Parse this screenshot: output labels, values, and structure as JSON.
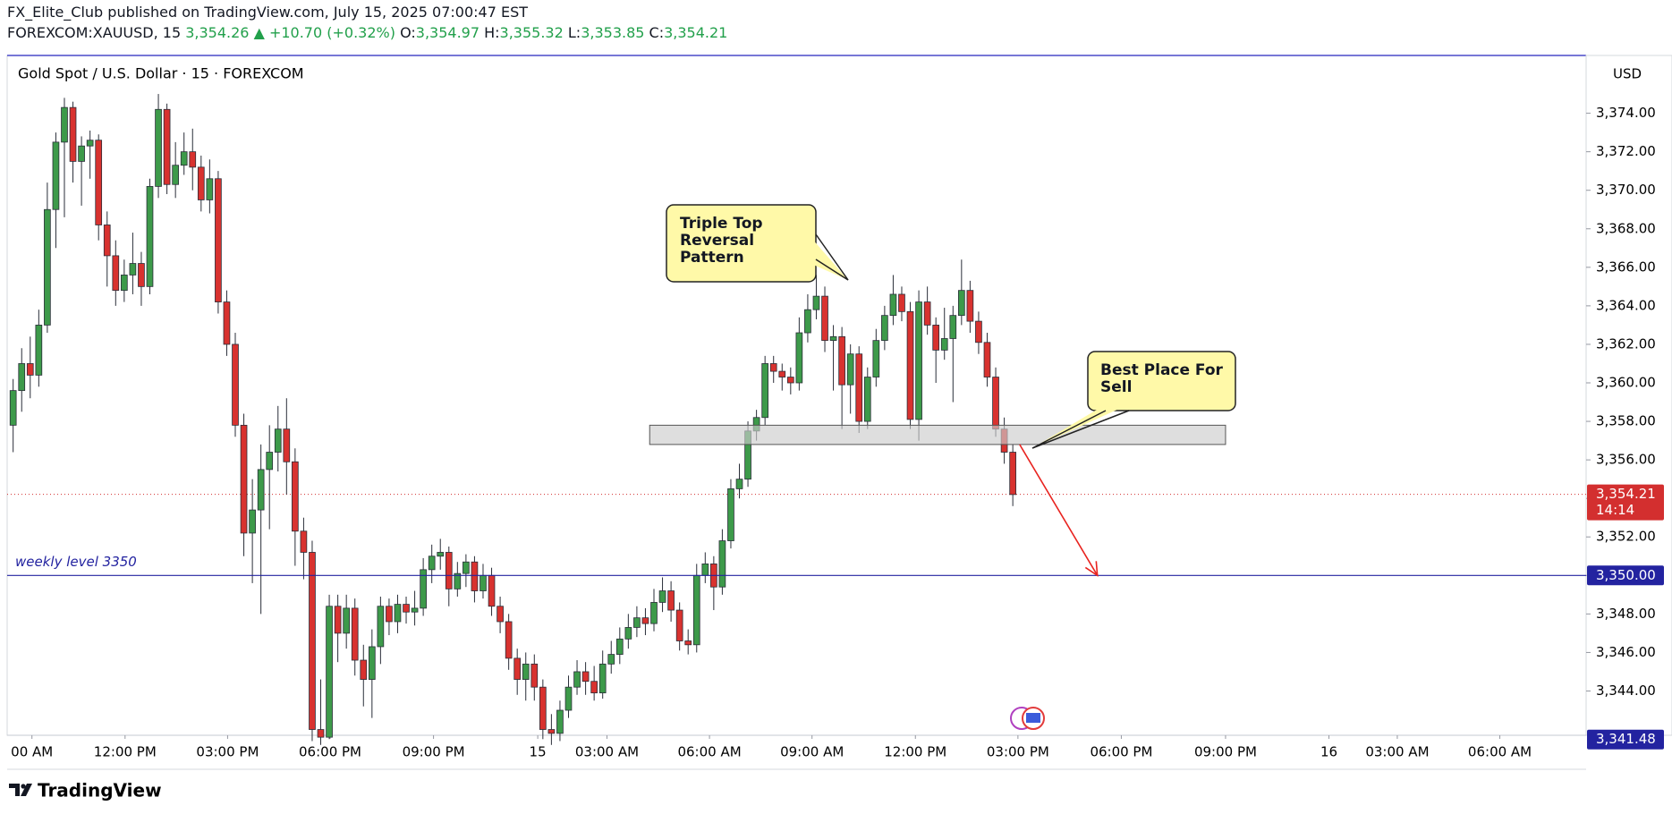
{
  "header": {
    "publisher": "FX_Elite_Club published on TradingView.com, July 15, 2025 07:00:47 EST",
    "symbol": "FOREXCOM:XAUUSD, 15",
    "price": "3,354.26",
    "change": "▲ +10.70 (+0.32%)",
    "ohlc": [
      {
        "label": "O:",
        "value": "3,354.97"
      },
      {
        "label": "H:",
        "value": "3,355.32"
      },
      {
        "label": "L:",
        "value": "3,353.85"
      },
      {
        "label": "C:",
        "value": "3,354.21"
      }
    ]
  },
  "chart_data": {
    "type": "candlestick",
    "title": "Gold Spot / U.S. Dollar · 15 · FOREXCOM",
    "currency": "USD",
    "up_color": "#3d9a4a",
    "down_color": "#d8322f",
    "candles": [
      [
        3357.8,
        3360.2,
        3356.4,
        3359.6
      ],
      [
        3359.6,
        3361.8,
        3358.5,
        3361.0
      ],
      [
        3361.0,
        3362.4,
        3359.2,
        3360.4
      ],
      [
        3360.4,
        3363.8,
        3359.8,
        3363.0
      ],
      [
        3363.0,
        3370.4,
        3362.6,
        3369.0
      ],
      [
        3369.0,
        3373.0,
        3367.0,
        3372.5
      ],
      [
        3372.5,
        3374.8,
        3368.6,
        3374.3
      ],
      [
        3374.3,
        3374.6,
        3370.4,
        3371.5
      ],
      [
        3371.5,
        3372.8,
        3369.2,
        3372.3
      ],
      [
        3372.3,
        3373.1,
        3370.6,
        3372.6
      ],
      [
        3372.6,
        3372.9,
        3367.4,
        3368.2
      ],
      [
        3368.2,
        3368.9,
        3365.0,
        3366.6
      ],
      [
        3366.6,
        3367.4,
        3364.0,
        3364.8
      ],
      [
        3364.8,
        3366.4,
        3364.2,
        3365.6
      ],
      [
        3365.6,
        3367.8,
        3364.6,
        3366.2
      ],
      [
        3366.2,
        3366.8,
        3364.0,
        3365.0
      ],
      [
        3365.0,
        3370.6,
        3364.6,
        3370.2
      ],
      [
        3370.2,
        3375.0,
        3369.6,
        3374.2
      ],
      [
        3374.2,
        3374.5,
        3369.8,
        3370.3
      ],
      [
        3370.3,
        3372.5,
        3369.6,
        3371.3
      ],
      [
        3371.3,
        3373.0,
        3370.8,
        3372.0
      ],
      [
        3372.0,
        3373.2,
        3370.0,
        3371.2
      ],
      [
        3371.2,
        3371.8,
        3368.9,
        3369.5
      ],
      [
        3369.5,
        3371.6,
        3368.8,
        3370.6
      ],
      [
        3370.6,
        3371.0,
        3363.6,
        3364.2
      ],
      [
        3364.2,
        3364.8,
        3361.4,
        3362.0
      ],
      [
        3362.0,
        3362.6,
        3357.2,
        3357.8
      ],
      [
        3357.8,
        3358.4,
        3351.0,
        3352.2
      ],
      [
        3352.2,
        3355.0,
        3349.6,
        3353.4
      ],
      [
        3353.4,
        3356.8,
        3348.0,
        3355.5
      ],
      [
        3355.5,
        3357.8,
        3352.4,
        3356.4
      ],
      [
        3356.4,
        3358.8,
        3355.4,
        3357.6
      ],
      [
        3357.6,
        3359.2,
        3354.2,
        3355.9
      ],
      [
        3355.9,
        3356.6,
        3350.5,
        3352.3
      ],
      [
        3352.3,
        3353.0,
        3349.8,
        3351.2
      ],
      [
        3351.2,
        3351.8,
        3341.4,
        3342.0
      ],
      [
        3342.0,
        3344.6,
        3341.2,
        3341.6
      ],
      [
        3341.6,
        3349.0,
        3341.5,
        3348.4
      ],
      [
        3348.4,
        3349.0,
        3345.5,
        3347.0
      ],
      [
        3347.0,
        3349.0,
        3346.2,
        3348.3
      ],
      [
        3348.3,
        3348.8,
        3344.8,
        3345.6
      ],
      [
        3345.6,
        3346.4,
        3343.2,
        3344.6
      ],
      [
        3344.6,
        3347.2,
        3342.6,
        3346.3
      ],
      [
        3346.3,
        3348.9,
        3345.4,
        3348.4
      ],
      [
        3348.4,
        3348.8,
        3346.9,
        3347.6
      ],
      [
        3347.6,
        3349.0,
        3347.0,
        3348.5
      ],
      [
        3348.5,
        3348.9,
        3347.5,
        3348.1
      ],
      [
        3348.1,
        3349.2,
        3347.4,
        3348.3
      ],
      [
        3348.3,
        3350.9,
        3347.9,
        3350.3
      ],
      [
        3350.3,
        3351.6,
        3349.6,
        3351.0
      ],
      [
        3351.0,
        3351.9,
        3350.3,
        3351.2
      ],
      [
        3351.2,
        3351.5,
        3348.4,
        3349.3
      ],
      [
        3349.3,
        3350.7,
        3348.9,
        3350.1
      ],
      [
        3350.1,
        3351.1,
        3349.4,
        3350.7
      ],
      [
        3350.7,
        3351.0,
        3348.6,
        3349.2
      ],
      [
        3349.2,
        3350.6,
        3348.8,
        3350.0
      ],
      [
        3350.0,
        3350.4,
        3347.9,
        3348.4
      ],
      [
        3348.4,
        3348.9,
        3347.0,
        3347.6
      ],
      [
        3347.6,
        3348.0,
        3345.1,
        3345.7
      ],
      [
        3345.7,
        3346.2,
        3343.8,
        3344.6
      ],
      [
        3344.6,
        3346.0,
        3343.5,
        3345.4
      ],
      [
        3345.4,
        3345.9,
        3343.5,
        3344.2
      ],
      [
        3344.2,
        3344.6,
        3341.5,
        3342.0
      ],
      [
        3342.0,
        3342.8,
        3341.2,
        3341.8
      ],
      [
        3341.8,
        3343.5,
        3341.4,
        3343.0
      ],
      [
        3343.0,
        3344.8,
        3342.6,
        3344.2
      ],
      [
        3344.2,
        3345.6,
        3343.8,
        3345.0
      ],
      [
        3345.0,
        3345.5,
        3343.8,
        3344.5
      ],
      [
        3344.5,
        3345.3,
        3343.5,
        3343.9
      ],
      [
        3343.9,
        3346.1,
        3343.6,
        3345.4
      ],
      [
        3345.4,
        3346.6,
        3344.9,
        3345.9
      ],
      [
        3345.9,
        3347.3,
        3345.4,
        3346.7
      ],
      [
        3346.7,
        3348.0,
        3346.2,
        3347.3
      ],
      [
        3347.3,
        3348.4,
        3346.8,
        3347.8
      ],
      [
        3347.8,
        3348.3,
        3346.9,
        3347.5
      ],
      [
        3347.5,
        3349.3,
        3347.1,
        3348.6
      ],
      [
        3348.6,
        3349.9,
        3348.1,
        3349.2
      ],
      [
        3349.2,
        3349.7,
        3347.6,
        3348.2
      ],
      [
        3348.2,
        3348.6,
        3346.1,
        3346.6
      ],
      [
        3346.6,
        3347.2,
        3345.9,
        3346.4
      ],
      [
        3346.4,
        3350.6,
        3346.0,
        3350.0
      ],
      [
        3350.0,
        3351.2,
        3349.6,
        3350.6
      ],
      [
        3350.6,
        3351.0,
        3348.2,
        3349.4
      ],
      [
        3349.4,
        3352.4,
        3349.0,
        3351.8
      ],
      [
        3351.8,
        3355.0,
        3351.4,
        3354.5
      ],
      [
        3354.5,
        3355.8,
        3354.0,
        3355.0
      ],
      [
        3355.0,
        3358.0,
        3354.6,
        3357.5
      ],
      [
        3357.5,
        3358.6,
        3357.0,
        3358.2
      ],
      [
        3358.2,
        3361.4,
        3357.8,
        3361.0
      ],
      [
        3361.0,
        3361.4,
        3360.0,
        3360.6
      ],
      [
        3360.6,
        3361.0,
        3359.6,
        3360.3
      ],
      [
        3360.3,
        3360.8,
        3359.4,
        3360.0
      ],
      [
        3360.0,
        3363.4,
        3359.6,
        3362.6
      ],
      [
        3362.6,
        3364.6,
        3362.1,
        3363.8
      ],
      [
        3363.8,
        3365.6,
        3363.3,
        3364.5
      ],
      [
        3364.5,
        3365.0,
        3361.6,
        3362.2
      ],
      [
        3362.2,
        3363.0,
        3359.6,
        3362.4
      ],
      [
        3362.4,
        3362.9,
        3357.6,
        3359.9
      ],
      [
        3359.9,
        3362.0,
        3358.4,
        3361.5
      ],
      [
        3361.5,
        3361.9,
        3357.4,
        3358.0
      ],
      [
        3358.0,
        3360.8,
        3357.6,
        3360.3
      ],
      [
        3360.3,
        3362.8,
        3359.8,
        3362.2
      ],
      [
        3362.2,
        3364.0,
        3361.7,
        3363.5
      ],
      [
        3363.5,
        3365.6,
        3363.0,
        3364.6
      ],
      [
        3364.6,
        3365.0,
        3363.2,
        3363.7
      ],
      [
        3363.7,
        3364.2,
        3357.6,
        3358.1
      ],
      [
        3358.1,
        3364.8,
        3357.0,
        3364.2
      ],
      [
        3364.2,
        3365.0,
        3362.5,
        3363.0
      ],
      [
        3363.0,
        3363.4,
        3360.0,
        3361.7
      ],
      [
        3361.7,
        3363.9,
        3361.2,
        3362.3
      ],
      [
        3362.3,
        3364.0,
        3359.0,
        3363.5
      ],
      [
        3363.5,
        3366.4,
        3363.0,
        3364.8
      ],
      [
        3364.8,
        3365.3,
        3362.6,
        3363.2
      ],
      [
        3363.2,
        3363.7,
        3361.5,
        3362.1
      ],
      [
        3362.1,
        3362.6,
        3359.8,
        3360.3
      ],
      [
        3360.3,
        3360.8,
        3357.2,
        3357.6
      ],
      [
        3357.6,
        3358.2,
        3355.8,
        3356.4
      ],
      [
        3356.4,
        3356.8,
        3353.6,
        3354.2
      ]
    ],
    "xlim": [
      -0.7,
      184.1
    ],
    "ylim": [
      3341.7,
      3377.0
    ],
    "xticks": [
      {
        "value": 2.2,
        "label": "00 AM"
      },
      {
        "value": 13.1,
        "label": "12:00 PM"
      },
      {
        "value": 25.1,
        "label": "03:00 PM"
      },
      {
        "value": 37.1,
        "label": "06:00 PM"
      },
      {
        "value": 49.2,
        "label": "09:00 PM"
      },
      {
        "value": 61.4,
        "label": "15"
      },
      {
        "value": 69.5,
        "label": "03:00 AM"
      },
      {
        "value": 81.5,
        "label": "06:00 AM"
      },
      {
        "value": 93.5,
        "label": "09:00 AM"
      },
      {
        "value": 105.6,
        "label": "12:00 PM"
      },
      {
        "value": 117.6,
        "label": "03:00 PM"
      },
      {
        "value": 129.7,
        "label": "06:00 PM"
      },
      {
        "value": 141.9,
        "label": "09:00 PM"
      },
      {
        "value": 154.0,
        "label": "16"
      },
      {
        "value": 162.0,
        "label": "03:00 AM"
      },
      {
        "value": 174.0,
        "label": "06:00 AM"
      }
    ],
    "yticks": [
      {
        "value": 3344,
        "label": "3,344.00"
      },
      {
        "value": 3346,
        "label": "3,346.00"
      },
      {
        "value": 3348,
        "label": "3,348.00"
      },
      {
        "value": 3350,
        "label": "3,350.00"
      },
      {
        "value": 3352,
        "label": "3,352.00"
      },
      {
        "value": 3354,
        "label": "3,354.00"
      },
      {
        "value": 3356,
        "label": "3,356.00"
      },
      {
        "value": 3358,
        "label": "3,358.00"
      },
      {
        "value": 3360,
        "label": "3,360.00"
      },
      {
        "value": 3362,
        "label": "3,362.00"
      },
      {
        "value": 3364,
        "label": "3,364.00"
      },
      {
        "value": 3366,
        "label": "3,366.00"
      },
      {
        "value": 3368,
        "label": "3,368.00"
      },
      {
        "value": 3370,
        "label": "3,370.00"
      },
      {
        "value": 3372,
        "label": "3,372.00"
      },
      {
        "value": 3374,
        "label": "3,374.00"
      }
    ],
    "level": {
      "value": 3350,
      "label": "weekly level 3350",
      "price_label": "3,350.00",
      "color": "#2323a0"
    },
    "last_price": {
      "value": 3354.21,
      "label": "3,354.21",
      "countdown": "14:14",
      "color": "#d32f2f"
    },
    "low_marker": {
      "value": 3341.48,
      "label": "3,341.48",
      "color": "#2323a0"
    },
    "zone": {
      "x": [
        74.5,
        141.9
      ],
      "y": [
        3356.8,
        3357.8
      ]
    },
    "arrow": {
      "x": [
        117.8,
        126.9
      ],
      "y": [
        3356.8,
        3350.0
      ],
      "color": "#e8231f"
    },
    "annotations": [
      {
        "lines": [
          "Triple Top",
          "Reversal",
          "Pattern"
        ]
      },
      {
        "lines": [
          "Best Place For",
          "Sell"
        ]
      }
    ]
  },
  "footer": {
    "brand": "TradingView"
  }
}
